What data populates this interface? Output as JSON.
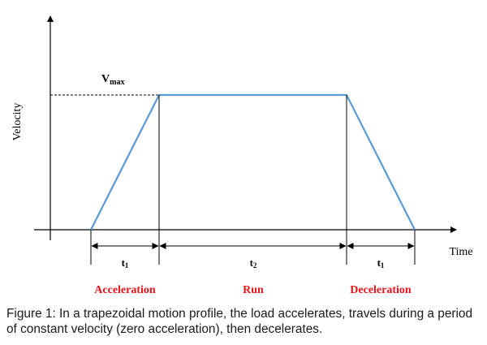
{
  "diagram": {
    "ylabel": "Velocity",
    "xlabel": "Time",
    "vmax_label": {
      "main": "V",
      "sub": "max"
    },
    "intervals": [
      {
        "main": "t",
        "sub": "1"
      },
      {
        "main": "t",
        "sub": "2"
      },
      {
        "main": "t",
        "sub": "1"
      }
    ],
    "phases": [
      {
        "label": "Acceleration"
      },
      {
        "label": "Run"
      },
      {
        "label": "Deceleration"
      }
    ],
    "colors": {
      "profile": "#5b9bd5",
      "phase_text": "#e8141b",
      "axis": "#000000"
    }
  },
  "caption": "Figure 1: In a trapezoidal motion profile, the load accelerates, travels during a period of constant velocity (zero acceleration), then decelerates."
}
